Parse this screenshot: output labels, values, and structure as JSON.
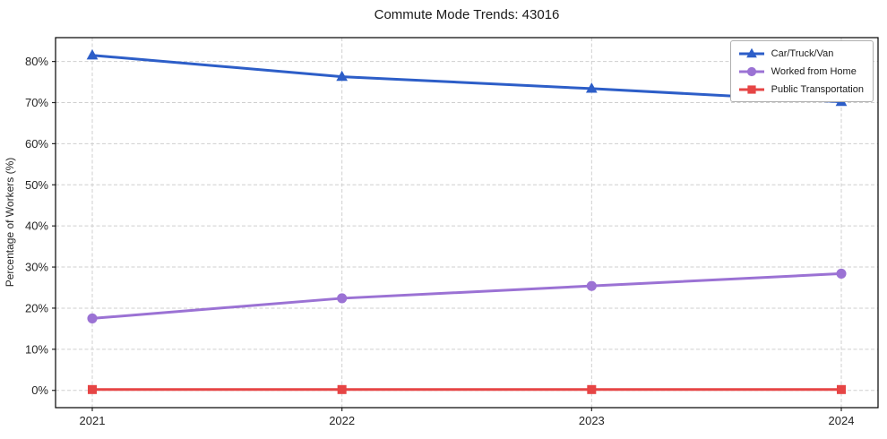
{
  "chart_data": {
    "type": "line",
    "title": "Commute Mode Trends: 43016",
    "xlabel": "",
    "ylabel": "Percentage of Workers (%)",
    "categories": [
      "2021",
      "2022",
      "2023",
      "2024"
    ],
    "series": [
      {
        "name": "Car/Truck/Van",
        "color": "#2d5ec8",
        "marker": "triangle",
        "values": [
          81.5,
          76.3,
          73.4,
          70.2
        ]
      },
      {
        "name": "Worked from Home",
        "color": "#9b72d4",
        "marker": "circle",
        "values": [
          17.5,
          22.4,
          25.4,
          28.4
        ]
      },
      {
        "name": "Public Transportation",
        "color": "#e64545",
        "marker": "square",
        "values": [
          0.2,
          0.2,
          0.2,
          0.2
        ]
      }
    ],
    "ylim": [
      -4.2,
      85.8
    ],
    "yticks": [
      0,
      10,
      20,
      30,
      40,
      50,
      60,
      70,
      80
    ],
    "ytick_labels": [
      "0%",
      "10%",
      "20%",
      "30%",
      "40%",
      "50%",
      "60%",
      "70%",
      "80%"
    ],
    "grid": true,
    "grid_on_x_and_y": true,
    "grid_color": "#cfcfcf",
    "axis_color": "#000000",
    "text_color": "#262626",
    "legend": {
      "position": "upper right",
      "border_color": "#b0b0b0",
      "background": "#ffffff"
    }
  }
}
